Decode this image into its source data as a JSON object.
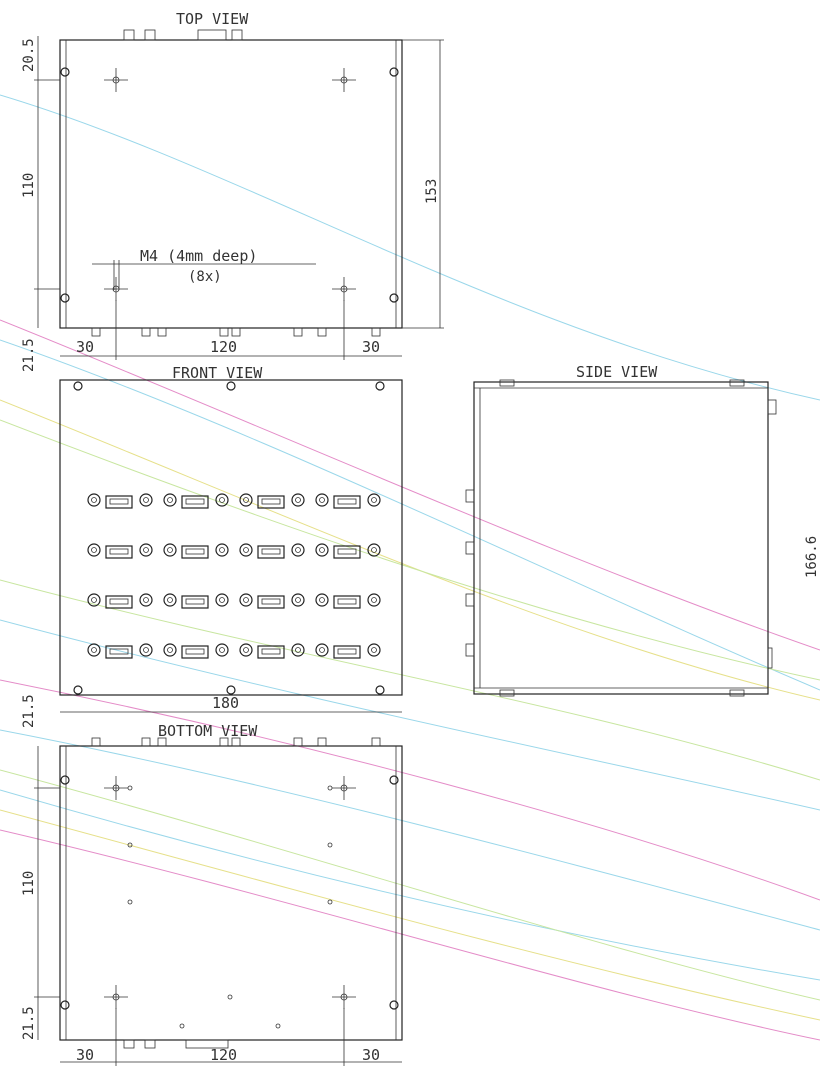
{
  "views": {
    "top": "TOP VIEW",
    "front": "FRONT VIEW",
    "side": "SIDE VIEW",
    "bottom": "BOTTOM VIEW"
  },
  "dimensions": {
    "top_offset": "20.5",
    "top_height": "110",
    "top_total": "153",
    "top_left": "30",
    "top_mid": "120",
    "top_right": "30",
    "front_offset_top": "21.5",
    "front_offset_bottom": "21.5",
    "front_width": "180",
    "side_height": "166.6",
    "bottom_height": "110",
    "bottom_offset": "21.5",
    "bottom_left": "30",
    "bottom_mid": "120",
    "bottom_right": "30"
  },
  "annotations": {
    "thread": "M4 (4mm deep)",
    "count": "(8x)"
  }
}
